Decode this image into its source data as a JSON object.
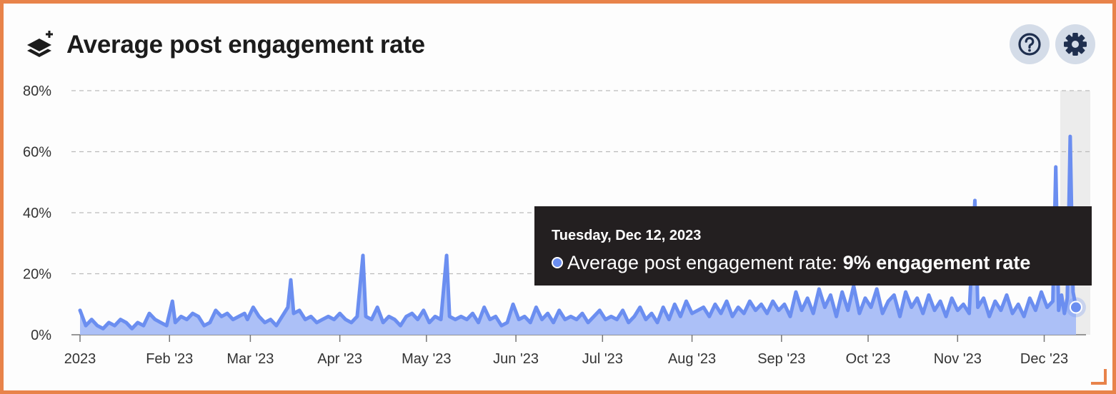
{
  "header": {
    "title": "Average post engagement rate",
    "icon": "layers-plus-icon",
    "help_icon": "question-circle-icon",
    "settings_icon": "gear-icon"
  },
  "colors": {
    "line": "#6B8EF0",
    "area": "#A8BDF7",
    "grid": "#BBBBBB",
    "border": "#E8834A",
    "button_bg": "#D4DCE8",
    "tooltip_bg": "#231F20"
  },
  "tooltip": {
    "date": "Tuesday, Dec 12, 2023",
    "series_label": "Average post engagement rate:",
    "value_text": "9% engagement rate"
  },
  "chart_data": {
    "type": "area",
    "title": "Average post engagement rate",
    "y_ticks": [
      "0%",
      "20%",
      "40%",
      "60%",
      "80%"
    ],
    "ylim": [
      0,
      80
    ],
    "y_unit": "%",
    "grid": true,
    "x_ticks": [
      {
        "label": "2023",
        "date": "2023-01-01"
      },
      {
        "label": "Feb '23",
        "date": "2023-02-01"
      },
      {
        "label": "Mar '23",
        "date": "2023-03-01"
      },
      {
        "label": "Apr '23",
        "date": "2023-04-01"
      },
      {
        "label": "May '23",
        "date": "2023-05-01"
      },
      {
        "label": "Jun '23",
        "date": "2023-06-01"
      },
      {
        "label": "Jul '23",
        "date": "2023-07-01"
      },
      {
        "label": "Aug '23",
        "date": "2023-08-01"
      },
      {
        "label": "Sep '23",
        "date": "2023-09-01"
      },
      {
        "label": "Oct '23",
        "date": "2023-10-01"
      },
      {
        "label": "Nov '23",
        "date": "2023-11-01"
      },
      {
        "label": "Dec '23",
        "date": "2023-12-01"
      }
    ],
    "xlim": [
      "2023-01-01",
      "2023-12-13"
    ],
    "highlight_date": "2023-12-12",
    "highlight_value": 9,
    "series": [
      {
        "name": "Average post engagement rate",
        "points": [
          [
            "2023-01-01",
            8
          ],
          [
            "2023-01-03",
            3
          ],
          [
            "2023-01-05",
            5
          ],
          [
            "2023-01-07",
            3
          ],
          [
            "2023-01-09",
            2
          ],
          [
            "2023-01-11",
            4
          ],
          [
            "2023-01-13",
            3
          ],
          [
            "2023-01-15",
            5
          ],
          [
            "2023-01-17",
            4
          ],
          [
            "2023-01-19",
            2
          ],
          [
            "2023-01-21",
            4
          ],
          [
            "2023-01-23",
            3
          ],
          [
            "2023-01-25",
            7
          ],
          [
            "2023-01-27",
            5
          ],
          [
            "2023-01-29",
            4
          ],
          [
            "2023-01-31",
            3
          ],
          [
            "2023-02-02",
            11
          ],
          [
            "2023-02-03",
            4
          ],
          [
            "2023-02-05",
            6
          ],
          [
            "2023-02-07",
            5
          ],
          [
            "2023-02-09",
            7
          ],
          [
            "2023-02-11",
            6
          ],
          [
            "2023-02-13",
            3
          ],
          [
            "2023-02-15",
            4
          ],
          [
            "2023-02-17",
            8
          ],
          [
            "2023-02-19",
            6
          ],
          [
            "2023-02-21",
            7
          ],
          [
            "2023-02-23",
            5
          ],
          [
            "2023-02-25",
            6
          ],
          [
            "2023-02-27",
            7
          ],
          [
            "2023-02-28",
            5
          ],
          [
            "2023-03-02",
            9
          ],
          [
            "2023-03-04",
            6
          ],
          [
            "2023-03-06",
            4
          ],
          [
            "2023-03-08",
            5
          ],
          [
            "2023-03-10",
            3
          ],
          [
            "2023-03-12",
            6
          ],
          [
            "2023-03-14",
            9
          ],
          [
            "2023-03-15",
            18
          ],
          [
            "2023-03-16",
            7
          ],
          [
            "2023-03-18",
            8
          ],
          [
            "2023-03-20",
            5
          ],
          [
            "2023-03-22",
            6
          ],
          [
            "2023-03-24",
            4
          ],
          [
            "2023-03-26",
            5
          ],
          [
            "2023-03-28",
            6
          ],
          [
            "2023-03-30",
            5
          ],
          [
            "2023-04-01",
            7
          ],
          [
            "2023-04-03",
            5
          ],
          [
            "2023-04-05",
            4
          ],
          [
            "2023-04-07",
            6
          ],
          [
            "2023-04-09",
            26
          ],
          [
            "2023-04-10",
            6
          ],
          [
            "2023-04-12",
            5
          ],
          [
            "2023-04-14",
            9
          ],
          [
            "2023-04-16",
            4
          ],
          [
            "2023-04-18",
            6
          ],
          [
            "2023-04-20",
            5
          ],
          [
            "2023-04-22",
            3
          ],
          [
            "2023-04-24",
            6
          ],
          [
            "2023-04-26",
            7
          ],
          [
            "2023-04-28",
            5
          ],
          [
            "2023-04-30",
            8
          ],
          [
            "2023-05-02",
            4
          ],
          [
            "2023-05-04",
            6
          ],
          [
            "2023-05-06",
            5
          ],
          [
            "2023-05-08",
            26
          ],
          [
            "2023-05-09",
            6
          ],
          [
            "2023-05-11",
            5
          ],
          [
            "2023-05-13",
            6
          ],
          [
            "2023-05-15",
            5
          ],
          [
            "2023-05-17",
            7
          ],
          [
            "2023-05-19",
            4
          ],
          [
            "2023-05-21",
            9
          ],
          [
            "2023-05-23",
            5
          ],
          [
            "2023-05-25",
            6
          ],
          [
            "2023-05-27",
            3
          ],
          [
            "2023-05-29",
            4
          ],
          [
            "2023-05-31",
            10
          ],
          [
            "2023-06-02",
            5
          ],
          [
            "2023-06-04",
            6
          ],
          [
            "2023-06-06",
            4
          ],
          [
            "2023-06-08",
            9
          ],
          [
            "2023-06-10",
            5
          ],
          [
            "2023-06-12",
            7
          ],
          [
            "2023-06-14",
            4
          ],
          [
            "2023-06-16",
            8
          ],
          [
            "2023-06-18",
            5
          ],
          [
            "2023-06-20",
            6
          ],
          [
            "2023-06-22",
            5
          ],
          [
            "2023-06-24",
            7
          ],
          [
            "2023-06-26",
            4
          ],
          [
            "2023-06-28",
            6
          ],
          [
            "2023-06-30",
            8
          ],
          [
            "2023-07-02",
            5
          ],
          [
            "2023-07-04",
            6
          ],
          [
            "2023-07-06",
            5
          ],
          [
            "2023-07-08",
            8
          ],
          [
            "2023-07-10",
            4
          ],
          [
            "2023-07-12",
            6
          ],
          [
            "2023-07-14",
            9
          ],
          [
            "2023-07-16",
            5
          ],
          [
            "2023-07-18",
            7
          ],
          [
            "2023-07-20",
            4
          ],
          [
            "2023-07-22",
            9
          ],
          [
            "2023-07-24",
            5
          ],
          [
            "2023-07-26",
            10
          ],
          [
            "2023-07-28",
            6
          ],
          [
            "2023-07-30",
            11
          ],
          [
            "2023-08-01",
            7
          ],
          [
            "2023-08-03",
            8
          ],
          [
            "2023-08-05",
            9
          ],
          [
            "2023-08-07",
            6
          ],
          [
            "2023-08-09",
            10
          ],
          [
            "2023-08-11",
            7
          ],
          [
            "2023-08-13",
            11
          ],
          [
            "2023-08-15",
            6
          ],
          [
            "2023-08-17",
            9
          ],
          [
            "2023-08-19",
            7
          ],
          [
            "2023-08-21",
            11
          ],
          [
            "2023-08-23",
            8
          ],
          [
            "2023-08-25",
            10
          ],
          [
            "2023-08-27",
            7
          ],
          [
            "2023-08-29",
            11
          ],
          [
            "2023-08-31",
            8
          ],
          [
            "2023-09-02",
            10
          ],
          [
            "2023-09-04",
            6
          ],
          [
            "2023-09-06",
            14
          ],
          [
            "2023-09-08",
            8
          ],
          [
            "2023-09-10",
            12
          ],
          [
            "2023-09-12",
            7
          ],
          [
            "2023-09-14",
            15
          ],
          [
            "2023-09-16",
            9
          ],
          [
            "2023-09-18",
            13
          ],
          [
            "2023-09-20",
            6
          ],
          [
            "2023-09-22",
            14
          ],
          [
            "2023-09-24",
            8
          ],
          [
            "2023-09-26",
            16
          ],
          [
            "2023-09-28",
            7
          ],
          [
            "2023-09-30",
            12
          ],
          [
            "2023-10-02",
            9
          ],
          [
            "2023-10-04",
            15
          ],
          [
            "2023-10-06",
            7
          ],
          [
            "2023-10-08",
            11
          ],
          [
            "2023-10-10",
            13
          ],
          [
            "2023-10-12",
            6
          ],
          [
            "2023-10-14",
            14
          ],
          [
            "2023-10-16",
            9
          ],
          [
            "2023-10-18",
            12
          ],
          [
            "2023-10-20",
            7
          ],
          [
            "2023-10-22",
            13
          ],
          [
            "2023-10-24",
            8
          ],
          [
            "2023-10-26",
            11
          ],
          [
            "2023-10-28",
            6
          ],
          [
            "2023-10-30",
            12
          ],
          [
            "2023-11-01",
            8
          ],
          [
            "2023-11-03",
            10
          ],
          [
            "2023-11-05",
            7
          ],
          [
            "2023-11-07",
            44
          ],
          [
            "2023-11-08",
            9
          ],
          [
            "2023-11-10",
            12
          ],
          [
            "2023-11-12",
            6
          ],
          [
            "2023-11-14",
            11
          ],
          [
            "2023-11-16",
            8
          ],
          [
            "2023-11-18",
            13
          ],
          [
            "2023-11-20",
            7
          ],
          [
            "2023-11-22",
            10
          ],
          [
            "2023-11-24",
            6
          ],
          [
            "2023-11-26",
            12
          ],
          [
            "2023-11-28",
            8
          ],
          [
            "2023-11-30",
            14
          ],
          [
            "2023-12-02",
            9
          ],
          [
            "2023-12-04",
            11
          ],
          [
            "2023-12-05",
            55
          ],
          [
            "2023-12-06",
            8
          ],
          [
            "2023-12-07",
            13
          ],
          [
            "2023-12-08",
            7
          ],
          [
            "2023-12-09",
            12
          ],
          [
            "2023-12-10",
            65
          ],
          [
            "2023-12-11",
            14
          ],
          [
            "2023-12-12",
            9
          ]
        ]
      }
    ]
  }
}
